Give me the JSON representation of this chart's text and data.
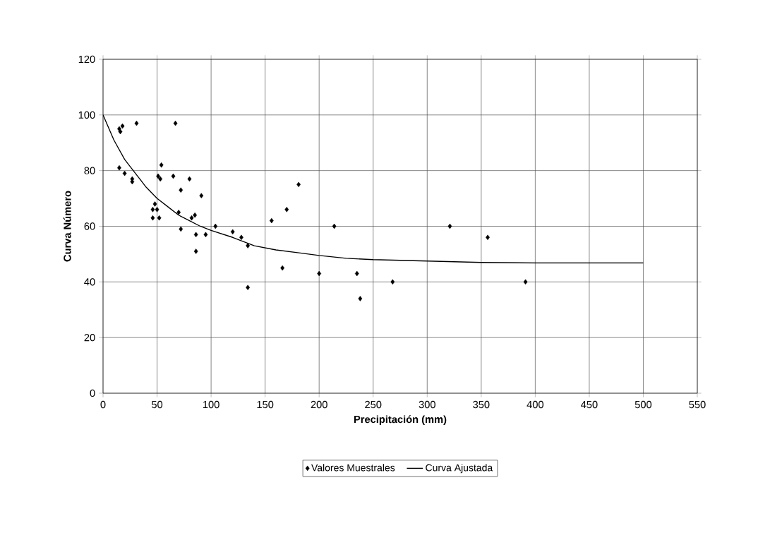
{
  "chart_data": {
    "type": "scatter",
    "xlabel": "Precipitación (mm)",
    "ylabel": "Curva Número",
    "xlim": [
      0,
      550
    ],
    "xticks": [
      0,
      50,
      100,
      150,
      200,
      250,
      300,
      350,
      400,
      450,
      500,
      550
    ],
    "ylim": [
      0,
      120
    ],
    "yticks": [
      0,
      20,
      40,
      60,
      80,
      100,
      120
    ],
    "grid": true,
    "legend": "bottom",
    "series": [
      {
        "name": "Valores Muestrales",
        "type": "scatter",
        "color": "#000000",
        "marker": "diamond",
        "x": [
          15,
          16,
          18,
          31,
          15,
          20,
          27,
          27,
          46,
          46,
          48,
          50,
          51,
          52,
          53,
          54,
          65,
          67,
          70,
          72,
          72,
          80,
          82,
          85,
          86,
          86,
          91,
          95,
          104,
          120,
          128,
          134,
          134,
          156,
          166,
          170,
          181,
          200,
          214,
          235,
          238,
          268,
          321,
          356,
          391
        ],
        "values": [
          95,
          94,
          96,
          97,
          81,
          79,
          77,
          76,
          66,
          63,
          68,
          66,
          78,
          63,
          77,
          82,
          78,
          97,
          65,
          59,
          73,
          77,
          63,
          64,
          57,
          51,
          71,
          57,
          60,
          58,
          56,
          53,
          38,
          62,
          45,
          66,
          75,
          43,
          60,
          43,
          34,
          40,
          60,
          56,
          40
        ]
      },
      {
        "name": "Curva Ajustada",
        "type": "line",
        "color": "#000000",
        "marker": "none",
        "line_style": "solid",
        "x": [
          0,
          10,
          20,
          30,
          40,
          50,
          60,
          70,
          80,
          90,
          100,
          120,
          140,
          160,
          180,
          200,
          225,
          250,
          300,
          350,
          400,
          500
        ],
        "values": [
          100,
          91,
          84,
          79,
          74,
          70,
          67,
          64,
          62,
          60,
          58.5,
          56,
          53,
          51.5,
          50.5,
          49.5,
          48.5,
          48,
          47.5,
          47,
          46.8,
          46.8
        ]
      }
    ]
  }
}
